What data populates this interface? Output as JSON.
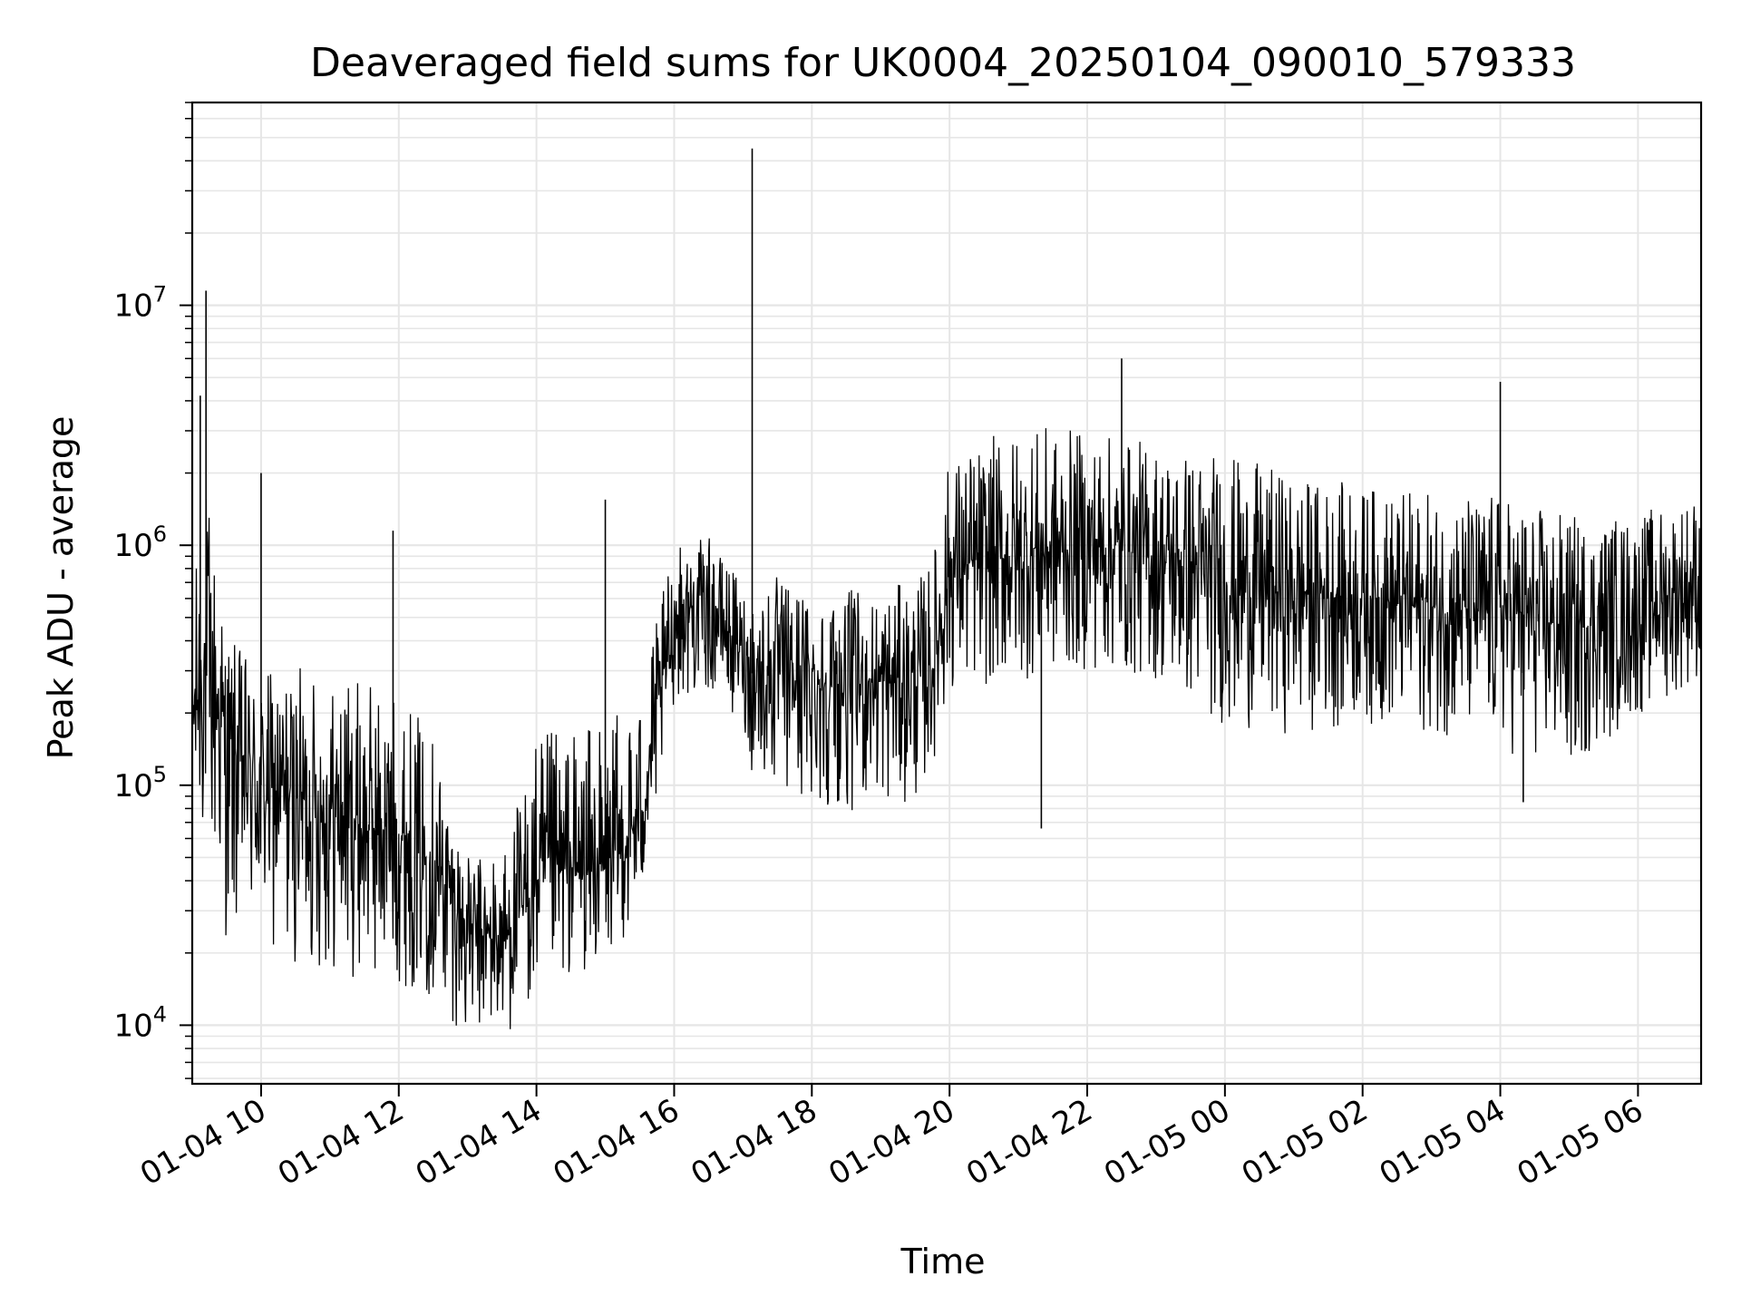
{
  "chart_data": {
    "type": "line",
    "title": "Deaveraged field sums for UK0004_20250104_090010_579333",
    "xlabel": "Time",
    "ylabel": "Peak ADU - average",
    "yscale": "log",
    "grid": true,
    "line_color": "#000000",
    "grid_color": "#e6e6e6",
    "xlim": [
      "2025-01-04 09:00",
      "2025-01-05 06:55"
    ],
    "ylim": [
      5700,
      70000000
    ],
    "x_ticks": [
      {
        "t": "2025-01-04 10:00",
        "label": "01-04 10"
      },
      {
        "t": "2025-01-04 12:00",
        "label": "01-04 12"
      },
      {
        "t": "2025-01-04 14:00",
        "label": "01-04 14"
      },
      {
        "t": "2025-01-04 16:00",
        "label": "01-04 16"
      },
      {
        "t": "2025-01-04 18:00",
        "label": "01-04 18"
      },
      {
        "t": "2025-01-04 20:00",
        "label": "01-04 20"
      },
      {
        "t": "2025-01-04 22:00",
        "label": "01-04 22"
      },
      {
        "t": "2025-01-05 00:00",
        "label": "01-05 00"
      },
      {
        "t": "2025-01-05 02:00",
        "label": "01-05 02"
      },
      {
        "t": "2025-01-05 04:00",
        "label": "01-05 04"
      },
      {
        "t": "2025-01-05 06:00",
        "label": "01-05 06"
      }
    ],
    "y_ticks": [
      {
        "value": 10000,
        "base": "10",
        "exp": "4"
      },
      {
        "value": 100000,
        "base": "10",
        "exp": "5"
      },
      {
        "value": 1000000,
        "base": "10",
        "exp": "6"
      },
      {
        "value": 10000000,
        "base": "10",
        "exp": "7"
      }
    ],
    "series": [
      {
        "x": [
          "2025-01-04 09:00",
          "2025-01-04 09:10",
          "2025-01-04 09:20",
          "2025-01-04 09:30",
          "2025-01-04 09:45",
          "2025-01-04 10:00",
          "2025-01-04 10:30",
          "2025-01-04 11:00",
          "2025-01-04 11:30",
          "2025-01-04 12:00",
          "2025-01-04 12:30",
          "2025-01-04 13:00",
          "2025-01-04 13:30",
          "2025-01-04 14:00",
          "2025-01-04 14:30",
          "2025-01-04 15:00",
          "2025-01-04 15:30",
          "2025-01-04 16:00",
          "2025-01-04 16:30",
          "2025-01-04 17:00",
          "2025-01-04 17:10",
          "2025-01-04 17:30",
          "2025-01-04 18:00",
          "2025-01-04 18:30",
          "2025-01-04 19:00",
          "2025-01-04 19:30",
          "2025-01-04 19:45",
          "2025-01-04 20:00",
          "2025-01-04 21:00",
          "2025-01-04 22:00",
          "2025-01-04 23:00",
          "2025-01-05 00:00",
          "2025-01-05 01:00",
          "2025-01-05 02:00",
          "2025-01-05 03:00",
          "2025-01-05 04:00",
          "2025-01-05 05:00",
          "2025-01-05 06:00",
          "2025-01-05 06:55"
        ],
        "center": [
          200000,
          300000,
          250000,
          150000,
          120000,
          100000,
          90000,
          80000,
          70000,
          60000,
          50000,
          25000,
          22000,
          40000,
          45000,
          45000,
          70000,
          500000,
          600000,
          350000,
          280000,
          300000,
          270000,
          260000,
          270000,
          280000,
          300000,
          800000,
          900000,
          1000000,
          900000,
          700000,
          650000,
          600000,
          550000,
          550000,
          450000,
          550000,
          700000
        ],
        "spread_high": [
          2.5,
          8,
          4,
          3,
          3,
          3,
          3.5,
          3.5,
          4,
          4,
          3.5,
          2,
          2.5,
          4,
          4,
          4,
          3.5,
          2,
          1.8,
          2,
          2.5,
          2.5,
          2.5,
          2.5,
          2.5,
          2.5,
          3,
          3,
          3.5,
          3,
          3,
          3.5,
          3,
          3,
          3,
          3,
          3,
          2.5,
          2.5
        ],
        "spread_low": [
          0.2,
          0.2,
          0.15,
          0.15,
          0.18,
          0.2,
          0.2,
          0.2,
          0.22,
          0.25,
          0.25,
          0.35,
          0.4,
          0.3,
          0.35,
          0.4,
          0.4,
          0.45,
          0.4,
          0.5,
          0.35,
          0.3,
          0.3,
          0.3,
          0.3,
          0.3,
          0.4,
          0.3,
          0.3,
          0.3,
          0.3,
          0.25,
          0.25,
          0.3,
          0.3,
          0.25,
          0.25,
          0.35,
          0.4
        ],
        "spikes": [
          {
            "t": "2025-01-04 09:07",
            "value": 4200000
          },
          {
            "t": "2025-01-04 09:12",
            "value": 11500000
          },
          {
            "t": "2025-01-04 10:00",
            "value": 2000000
          },
          {
            "t": "2025-01-04 11:55",
            "value": 1150000
          },
          {
            "t": "2025-01-04 15:00",
            "value": 1550000
          },
          {
            "t": "2025-01-04 17:08",
            "value": 45000000
          },
          {
            "t": "2025-01-04 22:30",
            "value": 6000000
          },
          {
            "t": "2025-01-04 21:20",
            "value": 66000
          },
          {
            "t": "2025-01-05 04:00",
            "value": 4800000
          },
          {
            "t": "2025-01-05 04:20",
            "value": 85000
          }
        ]
      }
    ]
  }
}
